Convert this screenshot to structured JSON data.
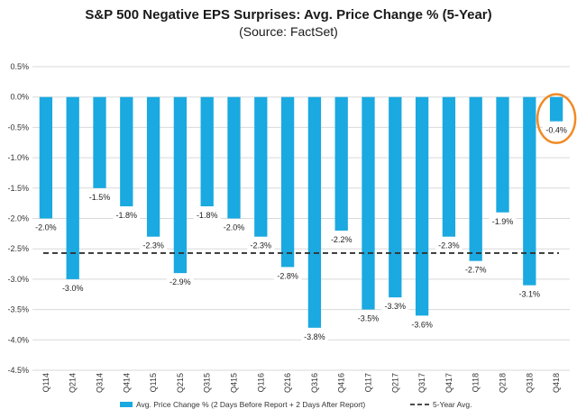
{
  "chart_data": {
    "type": "bar",
    "title": "S&P 500 Negative EPS Surprises: Avg. Price Change % (5-Year)",
    "subtitle": "(Source: FactSet)",
    "categories": [
      "Q114",
      "Q214",
      "Q314",
      "Q414",
      "Q115",
      "Q215",
      "Q315",
      "Q415",
      "Q116",
      "Q216",
      "Q316",
      "Q416",
      "Q117",
      "Q217",
      "Q317",
      "Q417",
      "Q118",
      "Q218",
      "Q318",
      "Q418"
    ],
    "series": [
      {
        "name": "Avg. Price Change % (2 Days Before Report + 2 Days After Report)",
        "values": [
          -2.0,
          -3.0,
          -1.5,
          -1.8,
          -2.3,
          -2.9,
          -1.8,
          -2.0,
          -2.3,
          -2.8,
          -3.8,
          -2.2,
          -3.5,
          -3.3,
          -3.6,
          -2.3,
          -2.7,
          -1.9,
          -3.1,
          -0.4
        ],
        "labels": [
          "-2.0%",
          "-3.0%",
          "-1.5%",
          "-1.8%",
          "-2.3%",
          "-2.9%",
          "-1.8%",
          "-2.0%",
          "-2.3%",
          "-2.8%",
          "-3.8%",
          "-2.2%",
          "-3.5%",
          "-3.3%",
          "-3.6%",
          "-2.3%",
          "-2.7%",
          "-1.9%",
          "-3.1%",
          "-0.4%"
        ],
        "color": "#1aa9e0"
      }
    ],
    "reference_line": {
      "name": "5-Year Avg.",
      "value": -2.57,
      "style": "dashed",
      "color": "#333333"
    },
    "yticks": [
      "0.5%",
      "0.0%",
      "-0.5%",
      "-1.0%",
      "-1.5%",
      "-2.0%",
      "-2.5%",
      "-3.0%",
      "-3.5%",
      "-4.0%",
      "-4.5%"
    ],
    "ylim": [
      -4.5,
      0.5
    ],
    "grid": true,
    "legend_placement": "bottom-center",
    "highlight": {
      "category": "Q418",
      "shape": "circle",
      "color": "#f08a24"
    }
  }
}
